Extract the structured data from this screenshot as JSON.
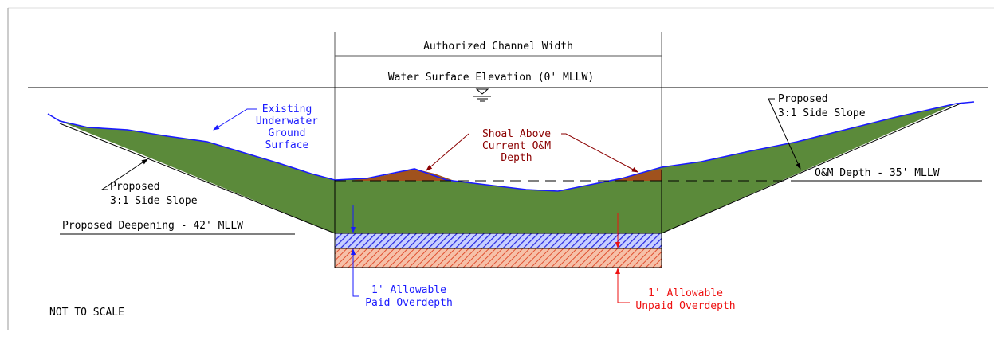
{
  "channel_width_label": "Authorized Channel Width",
  "water_surface_label": "Water Surface Elevation (0' MLLW)",
  "existing_surface_label": [
    "Existing",
    "Underwater",
    "Ground",
    "Surface"
  ],
  "left_slope_label": [
    "Proposed",
    "3:1 Side Slope"
  ],
  "right_slope_label": [
    "Proposed",
    "3:1 Side Slope"
  ],
  "shoal_label": [
    "Shoal Above",
    "Current O&M",
    "Depth"
  ],
  "om_depth_label": "O&M Depth - 35' MLLW",
  "deepening_label": "Proposed Deepening - 42' MLLW",
  "paid_overdepth_label": [
    "1' Allowable",
    "Paid Overdepth"
  ],
  "unpaid_overdepth_label": [
    "1' Allowable",
    "Unpaid Overdepth"
  ],
  "scale_note": "NOT TO SCALE"
}
